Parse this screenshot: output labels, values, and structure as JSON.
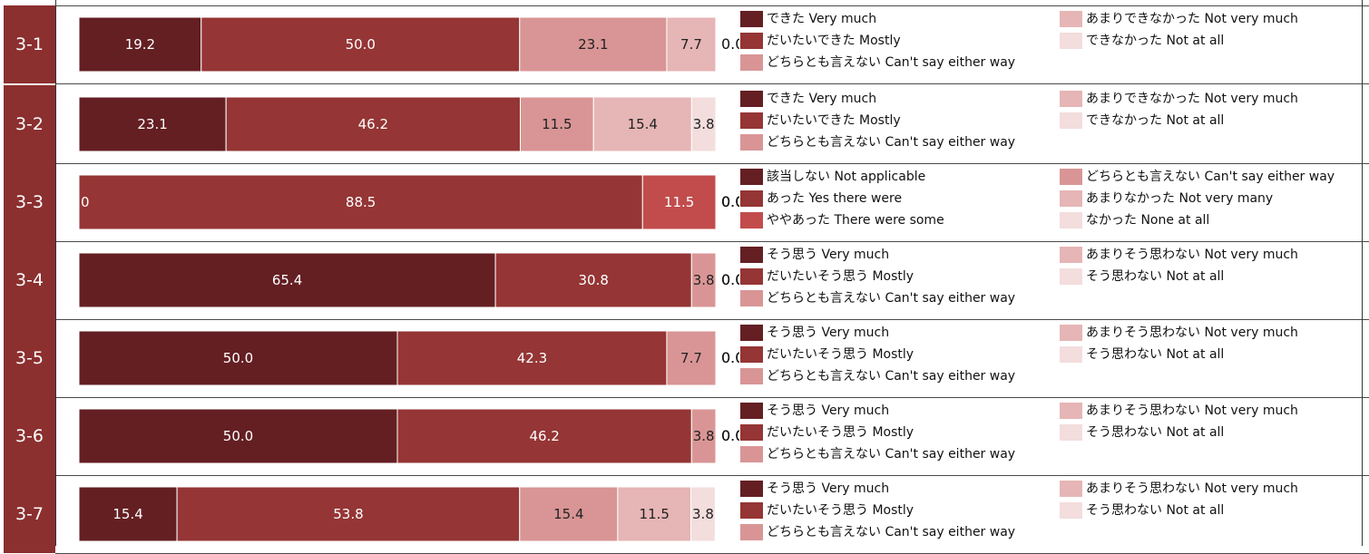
{
  "colors": {
    "label_bg": "#8b2f2f",
    "c1": "#641f23",
    "c2": "#953535",
    "c3": "#d99595",
    "c4": "#e6b5b5",
    "c5": "#f3dddd",
    "c3_q3": "#c24c4c"
  },
  "chart_data": [
    {
      "type": "bar",
      "orientation": "horizontal-stacked-100",
      "label": "3-1",
      "values": [
        19.2,
        50.0,
        23.1,
        7.7,
        0.0
      ],
      "value_labels": [
        "19.2",
        "50.0",
        "23.1",
        "7.7",
        "0.0"
      ],
      "legend": [
        "できた Very much",
        "だいたいできた Mostly",
        "どちらとも言えない Can't say either way",
        "あまりできなかった Not very much",
        "できなかった Not at all"
      ]
    },
    {
      "type": "bar",
      "orientation": "horizontal-stacked-100",
      "label": "3-2",
      "values": [
        23.1,
        46.2,
        11.5,
        15.4,
        3.8
      ],
      "value_labels": [
        "23.1",
        "46.2",
        "11.5",
        "15.4",
        "3.8"
      ],
      "legend": [
        "できた Very much",
        "だいたいできた Mostly",
        "どちらとも言えない Can't say either way",
        "あまりできなかった Not very much",
        "できなかった Not at all"
      ]
    },
    {
      "type": "bar",
      "orientation": "horizontal-stacked-100",
      "label": "3-3",
      "values": [
        0.0,
        88.5,
        11.5,
        0.0,
        0.0,
        0.0
      ],
      "value_labels": [
        "0",
        "88.5",
        "11.5",
        "0.0",
        "0.0",
        "0.0"
      ],
      "legend": [
        "該当しない Not applicable",
        "あった Yes there were",
        "ややあった There were some",
        "どちらとも言えない Can't say either way",
        "あまりなかった Not very many",
        "なかった None at all"
      ]
    },
    {
      "type": "bar",
      "orientation": "horizontal-stacked-100",
      "label": "3-4",
      "values": [
        65.4,
        30.8,
        3.8,
        0.0,
        0.0
      ],
      "value_labels": [
        "65.4",
        "30.8",
        "3.8",
        "0.0",
        "0.0"
      ],
      "legend": [
        "そう思う Very much",
        "だいたいそう思う Mostly",
        "どちらとも言えない Can't say either way",
        "あまりそう思わない Not very much",
        "そう思わない Not at all"
      ]
    },
    {
      "type": "bar",
      "orientation": "horizontal-stacked-100",
      "label": "3-5",
      "values": [
        50.0,
        42.3,
        7.7,
        0.0,
        0.0
      ],
      "value_labels": [
        "50.0",
        "42.3",
        "7.7",
        "0.0",
        "0.0"
      ],
      "legend": [
        "そう思う Very much",
        "だいたいそう思う Mostly",
        "どちらとも言えない Can't say either way",
        "あまりそう思わない Not very much",
        "そう思わない Not at all"
      ]
    },
    {
      "type": "bar",
      "orientation": "horizontal-stacked-100",
      "label": "3-6",
      "values": [
        50.0,
        46.2,
        3.8,
        0.0,
        0.0
      ],
      "value_labels": [
        "50.0",
        "46.2",
        "3.8",
        "0.0",
        "0.0"
      ],
      "legend": [
        "そう思う Very much",
        "だいたいそう思う Mostly",
        "どちらとも言えない Can't say either way",
        "あまりそう思わない Not very much",
        "そう思わない Not at all"
      ]
    },
    {
      "type": "bar",
      "orientation": "horizontal-stacked-100",
      "label": "3-7",
      "values": [
        15.4,
        53.8,
        15.4,
        11.5,
        3.8
      ],
      "value_labels": [
        "15.4",
        "53.8",
        "15.4",
        "11.5",
        "3.8"
      ],
      "legend": [
        "そう思う Very much",
        "だいたいそう思う Mostly",
        "どちらとも言えない Can't say either way",
        "あまりそう思わない Not very much",
        "そう思わない Not at all"
      ]
    }
  ]
}
